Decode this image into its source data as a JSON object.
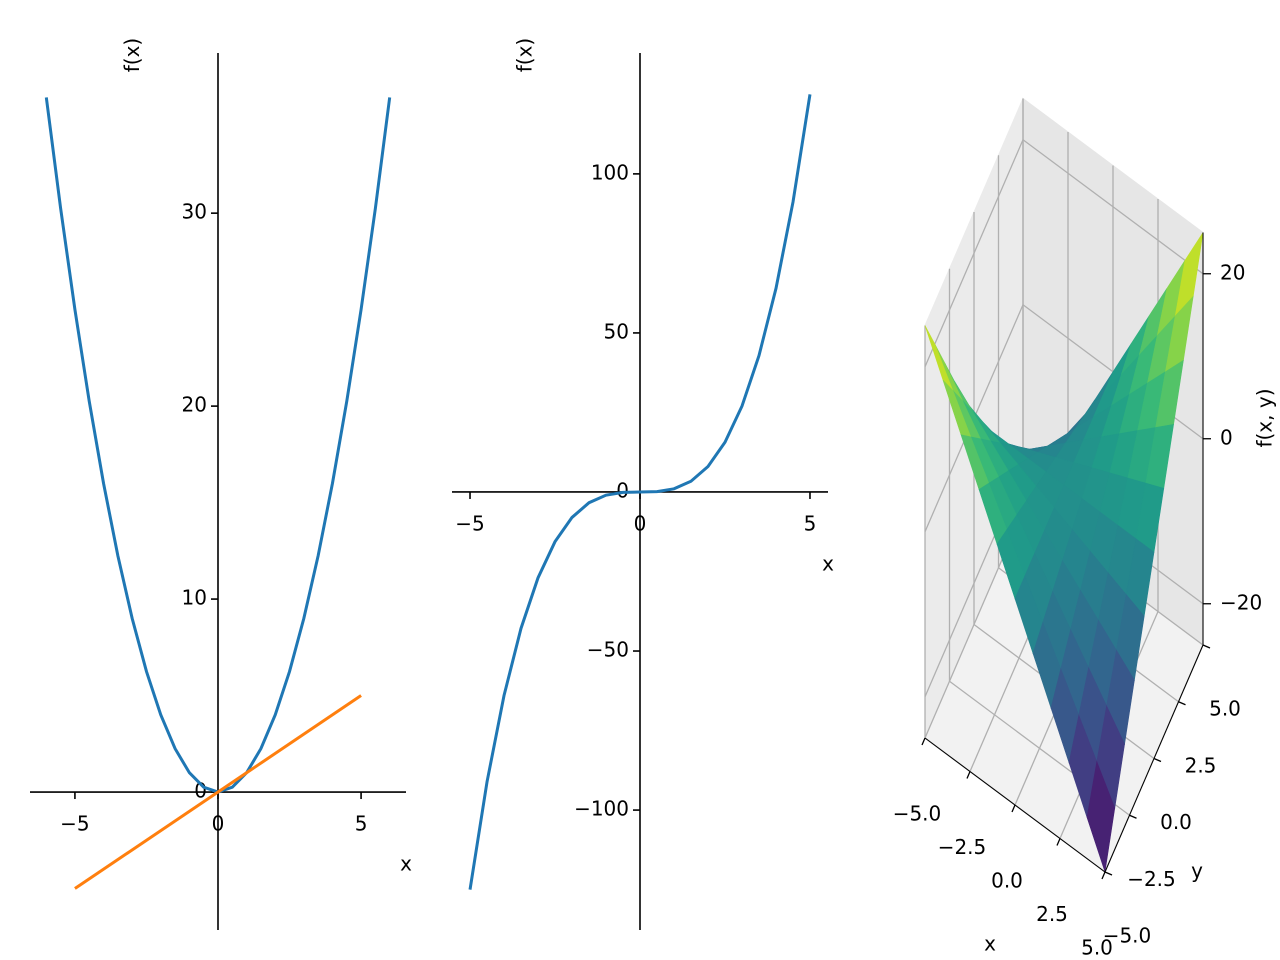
{
  "chart_data": [
    {
      "type": "line",
      "xlabel": "x",
      "ylabel": "f(x)",
      "spines": "zero",
      "xlim": [
        -6.57,
        6.57
      ],
      "ylim": [
        -7.15,
        38.3
      ],
      "xticks": [
        {
          "value": -5,
          "label": "−5"
        },
        0,
        5
      ],
      "yticks": [
        0,
        10,
        20,
        30
      ],
      "series": [
        {
          "color": "#1f77b4",
          "x": [
            -6,
            -5.5,
            -5,
            -4.5,
            -4,
            -3.5,
            -3,
            -2.5,
            -2,
            -1.5,
            -1,
            -0.5,
            0,
            0.5,
            1,
            1.5,
            2,
            2.5,
            3,
            3.5,
            4,
            4.5,
            5,
            5.5,
            6
          ],
          "values": [
            36,
            30.25,
            25,
            20.25,
            16,
            12.25,
            9,
            6.25,
            4,
            2.25,
            1,
            0.25,
            0,
            0.25,
            1,
            2.25,
            4,
            6.25,
            9,
            12.25,
            16,
            20.25,
            25,
            30.25,
            36
          ]
        },
        {
          "color": "#ff7f0e",
          "x": [
            -5,
            5
          ],
          "values": [
            -5,
            5
          ]
        }
      ]
    },
    {
      "type": "line",
      "xlabel": "x",
      "ylabel": "f(x)",
      "spines": "zero",
      "xlim": [
        -5.53,
        5.53
      ],
      "ylim": [
        -137.7,
        138
      ],
      "xticks": [
        {
          "value": -5,
          "label": "−5"
        },
        0,
        5
      ],
      "yticks": [
        {
          "value": -100,
          "label": "−100"
        },
        {
          "value": -50,
          "label": "−50"
        },
        0,
        50,
        100
      ],
      "series": [
        {
          "color": "#1f77b4",
          "x": [
            -5,
            -4.5,
            -4,
            -3.5,
            -3,
            -2.5,
            -2,
            -1.5,
            -1,
            -0.5,
            0,
            0.5,
            1,
            1.5,
            2,
            2.5,
            3,
            3.5,
            4,
            4.5,
            5
          ],
          "values": [
            -125,
            -91.125,
            -64,
            -42.875,
            -27,
            -15.625,
            -8,
            -3.375,
            -1,
            -0.125,
            0,
            0.125,
            1,
            3.375,
            8,
            15.625,
            27,
            42.875,
            64,
            91.125,
            125
          ]
        }
      ]
    },
    {
      "type": "surface3d",
      "xlabel": "x",
      "ylabel": "y",
      "zlabel": "f(x, y)",
      "colormap": "viridis",
      "xlim": [
        -5,
        5
      ],
      "ylim": [
        -5,
        5
      ],
      "zlim": [
        -25,
        25
      ],
      "xticks": [
        {
          "value": -5,
          "label": "−5.0"
        },
        {
          "value": -2.5,
          "label": "−2.5"
        },
        {
          "value": 0,
          "label": "0.0"
        },
        {
          "value": 2.5,
          "label": "2.5"
        },
        {
          "value": 5,
          "label": "5.0"
        }
      ],
      "yticks": [
        {
          "value": -5,
          "label": "−5.0"
        },
        {
          "value": -2.5,
          "label": "−2.5"
        },
        {
          "value": 0,
          "label": "0.0"
        },
        {
          "value": 2.5,
          "label": "2.5"
        },
        {
          "value": 5,
          "label": "5.0"
        }
      ],
      "zticks": [
        {
          "value": -20,
          "label": "−20"
        },
        0,
        20
      ],
      "x": [
        -5,
        -4,
        -3,
        -2,
        -1,
        0,
        1,
        2,
        3,
        4,
        5
      ],
      "y": [
        -5,
        -4,
        -3,
        -2,
        -1,
        0,
        1,
        2,
        3,
        4,
        5
      ],
      "z": [
        [
          25,
          20,
          15,
          10,
          5,
          0,
          -5,
          -10,
          -15,
          -20,
          -25
        ],
        [
          20,
          16,
          12,
          8,
          4,
          0,
          -4,
          -8,
          -12,
          -16,
          -20
        ],
        [
          15,
          12,
          9,
          6,
          3,
          0,
          -3,
          -6,
          -9,
          -12,
          -15
        ],
        [
          10,
          8,
          6,
          4,
          2,
          0,
          -2,
          -4,
          -6,
          -8,
          -10
        ],
        [
          5,
          4,
          3,
          2,
          1,
          0,
          -1,
          -2,
          -3,
          -4,
          -5
        ],
        [
          0,
          0,
          0,
          0,
          0,
          0,
          0,
          0,
          0,
          0,
          0
        ],
        [
          -5,
          -4,
          -3,
          -2,
          -1,
          0,
          1,
          2,
          3,
          4,
          5
        ],
        [
          -10,
          -8,
          -6,
          -4,
          -2,
          0,
          2,
          4,
          6,
          8,
          10
        ],
        [
          -15,
          -12,
          -9,
          -6,
          -3,
          0,
          3,
          6,
          9,
          12,
          15
        ],
        [
          -20,
          -16,
          -12,
          -8,
          -4,
          0,
          4,
          8,
          12,
          16,
          20
        ],
        [
          -25,
          -20,
          -15,
          -10,
          -5,
          0,
          5,
          10,
          15,
          20,
          25
        ]
      ]
    }
  ]
}
